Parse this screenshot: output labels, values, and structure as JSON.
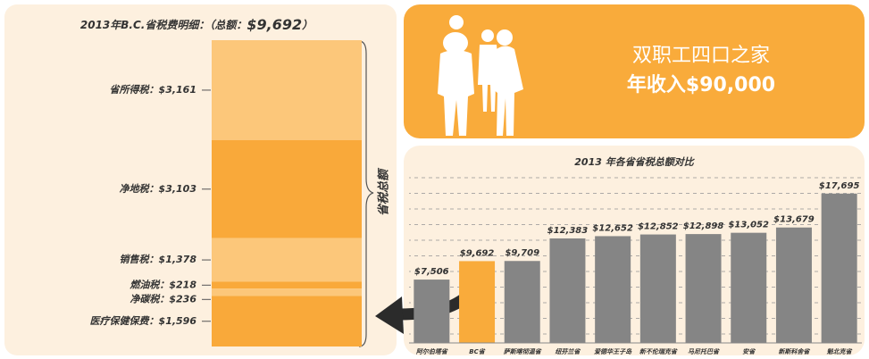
{
  "chart_data": [
    {
      "type": "stacked_bar",
      "title": "2013年B.C.省税费明细：（总额：",
      "total": 9692,
      "total_label": "$9,692",
      "title_end": "）",
      "brace_label": "省税总额",
      "categories": [
        "省所得税：",
        "净地税：",
        "销售税：",
        "燃油税：",
        "净碳税：",
        "医疗保健保费："
      ],
      "values": [
        3161,
        3103,
        1378,
        218,
        236,
        1596
      ],
      "value_labels": [
        "$3,161",
        "$3,103",
        "$1,378",
        "$218",
        "$236",
        "$1,596"
      ],
      "colors": [
        "#fcc77a",
        "#f9a93a",
        "#fcc77a",
        "#f9a93a",
        "#fcc77a",
        "#f9a93a"
      ],
      "ylim": [
        0,
        9692
      ]
    },
    {
      "type": "bar",
      "title": "2013 年各省省税总额对比",
      "categories": [
        "阿尔伯塔省",
        "BC省",
        "萨斯喀彻温省",
        "纽芬兰省",
        "爱德华王子岛",
        "新不伦瑞克省",
        "马尼托巴省",
        "安省",
        "新斯科舍省",
        "魁北克省"
      ],
      "values": [
        7506,
        9692,
        9709,
        12383,
        12652,
        12852,
        12898,
        13052,
        13679,
        17695
      ],
      "value_labels": [
        "$7,506",
        "$9,692",
        "$9,709",
        "$12,383",
        "$12,652",
        "$12,852",
        "$12,898",
        "$13,052",
        "$13,679",
        "$17,695"
      ],
      "colors": [
        "#858585",
        "#f9ab3b",
        "#858585",
        "#858585",
        "#858585",
        "#858585",
        "#858585",
        "#858585",
        "#858585",
        "#858585"
      ],
      "ylim": [
        0,
        20000
      ]
    }
  ],
  "banner": {
    "line1": "双职工四口之家",
    "line2": "年收入$90,000"
  }
}
